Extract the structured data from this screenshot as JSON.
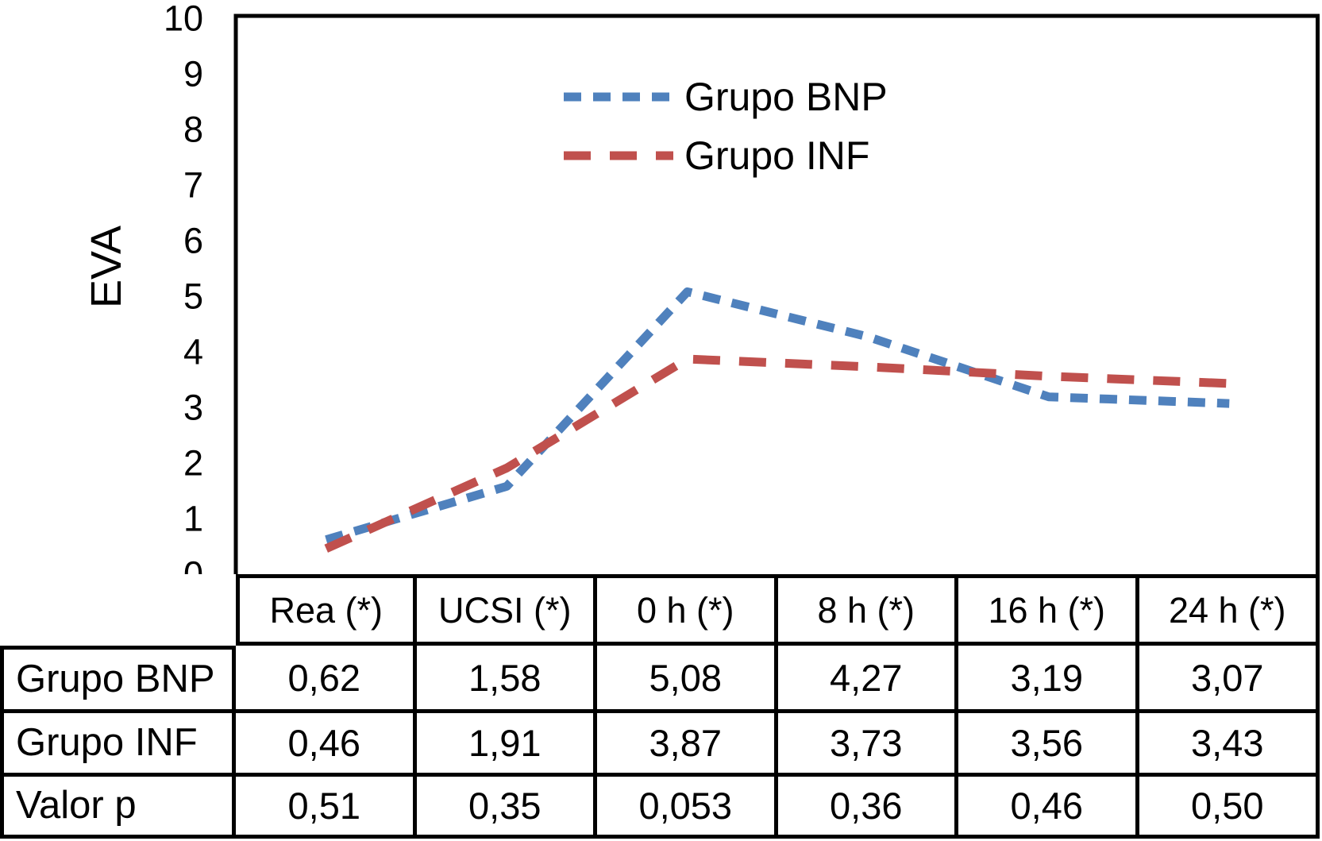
{
  "chart_data": {
    "type": "line",
    "title": "",
    "xlabel": "",
    "ylabel": "EVA",
    "ylim": [
      0,
      10
    ],
    "y_ticks": [
      0,
      1,
      2,
      3,
      4,
      5,
      6,
      7,
      8,
      9,
      10
    ],
    "grid": false,
    "legend_position": "top-center",
    "categories": [
      "Rea (*)",
      "UCSI (*)",
      "0 h (*)",
      "8 h (*)",
      "16 h (*)",
      "24 h (*)"
    ],
    "series": [
      {
        "name": "Grupo BNP",
        "color": "#4F81BD",
        "dash": [
          22,
          15
        ],
        "values": [
          0.62,
          1.58,
          5.08,
          4.27,
          3.19,
          3.07
        ]
      },
      {
        "name": "Grupo INF",
        "color": "#C0504D",
        "dash": [
          34,
          24
        ],
        "values": [
          0.46,
          1.91,
          3.87,
          3.73,
          3.56,
          3.43
        ]
      }
    ]
  },
  "table": {
    "column_headers": [
      "Rea (*)",
      "UCSI (*)",
      "0 h (*)",
      "8 h (*)",
      "16 h (*)",
      "24 h (*)"
    ],
    "rows": [
      {
        "label": "Grupo BNP",
        "values": [
          "0,62",
          "1,58",
          "5,08",
          "4,27",
          "3,19",
          "3,07"
        ]
      },
      {
        "label": "Grupo INF",
        "values": [
          "0,46",
          "1,91",
          "3,87",
          "3,73",
          "3,56",
          "3,43"
        ]
      },
      {
        "label": "Valor p",
        "values": [
          "0,51",
          "0,35",
          "0,053",
          "0,36",
          "0,46",
          "0,50"
        ]
      }
    ]
  },
  "colors": {
    "axis": "#000000",
    "background": "#ffffff",
    "series_bnp": "#4F81BD",
    "series_inf": "#C0504D"
  }
}
